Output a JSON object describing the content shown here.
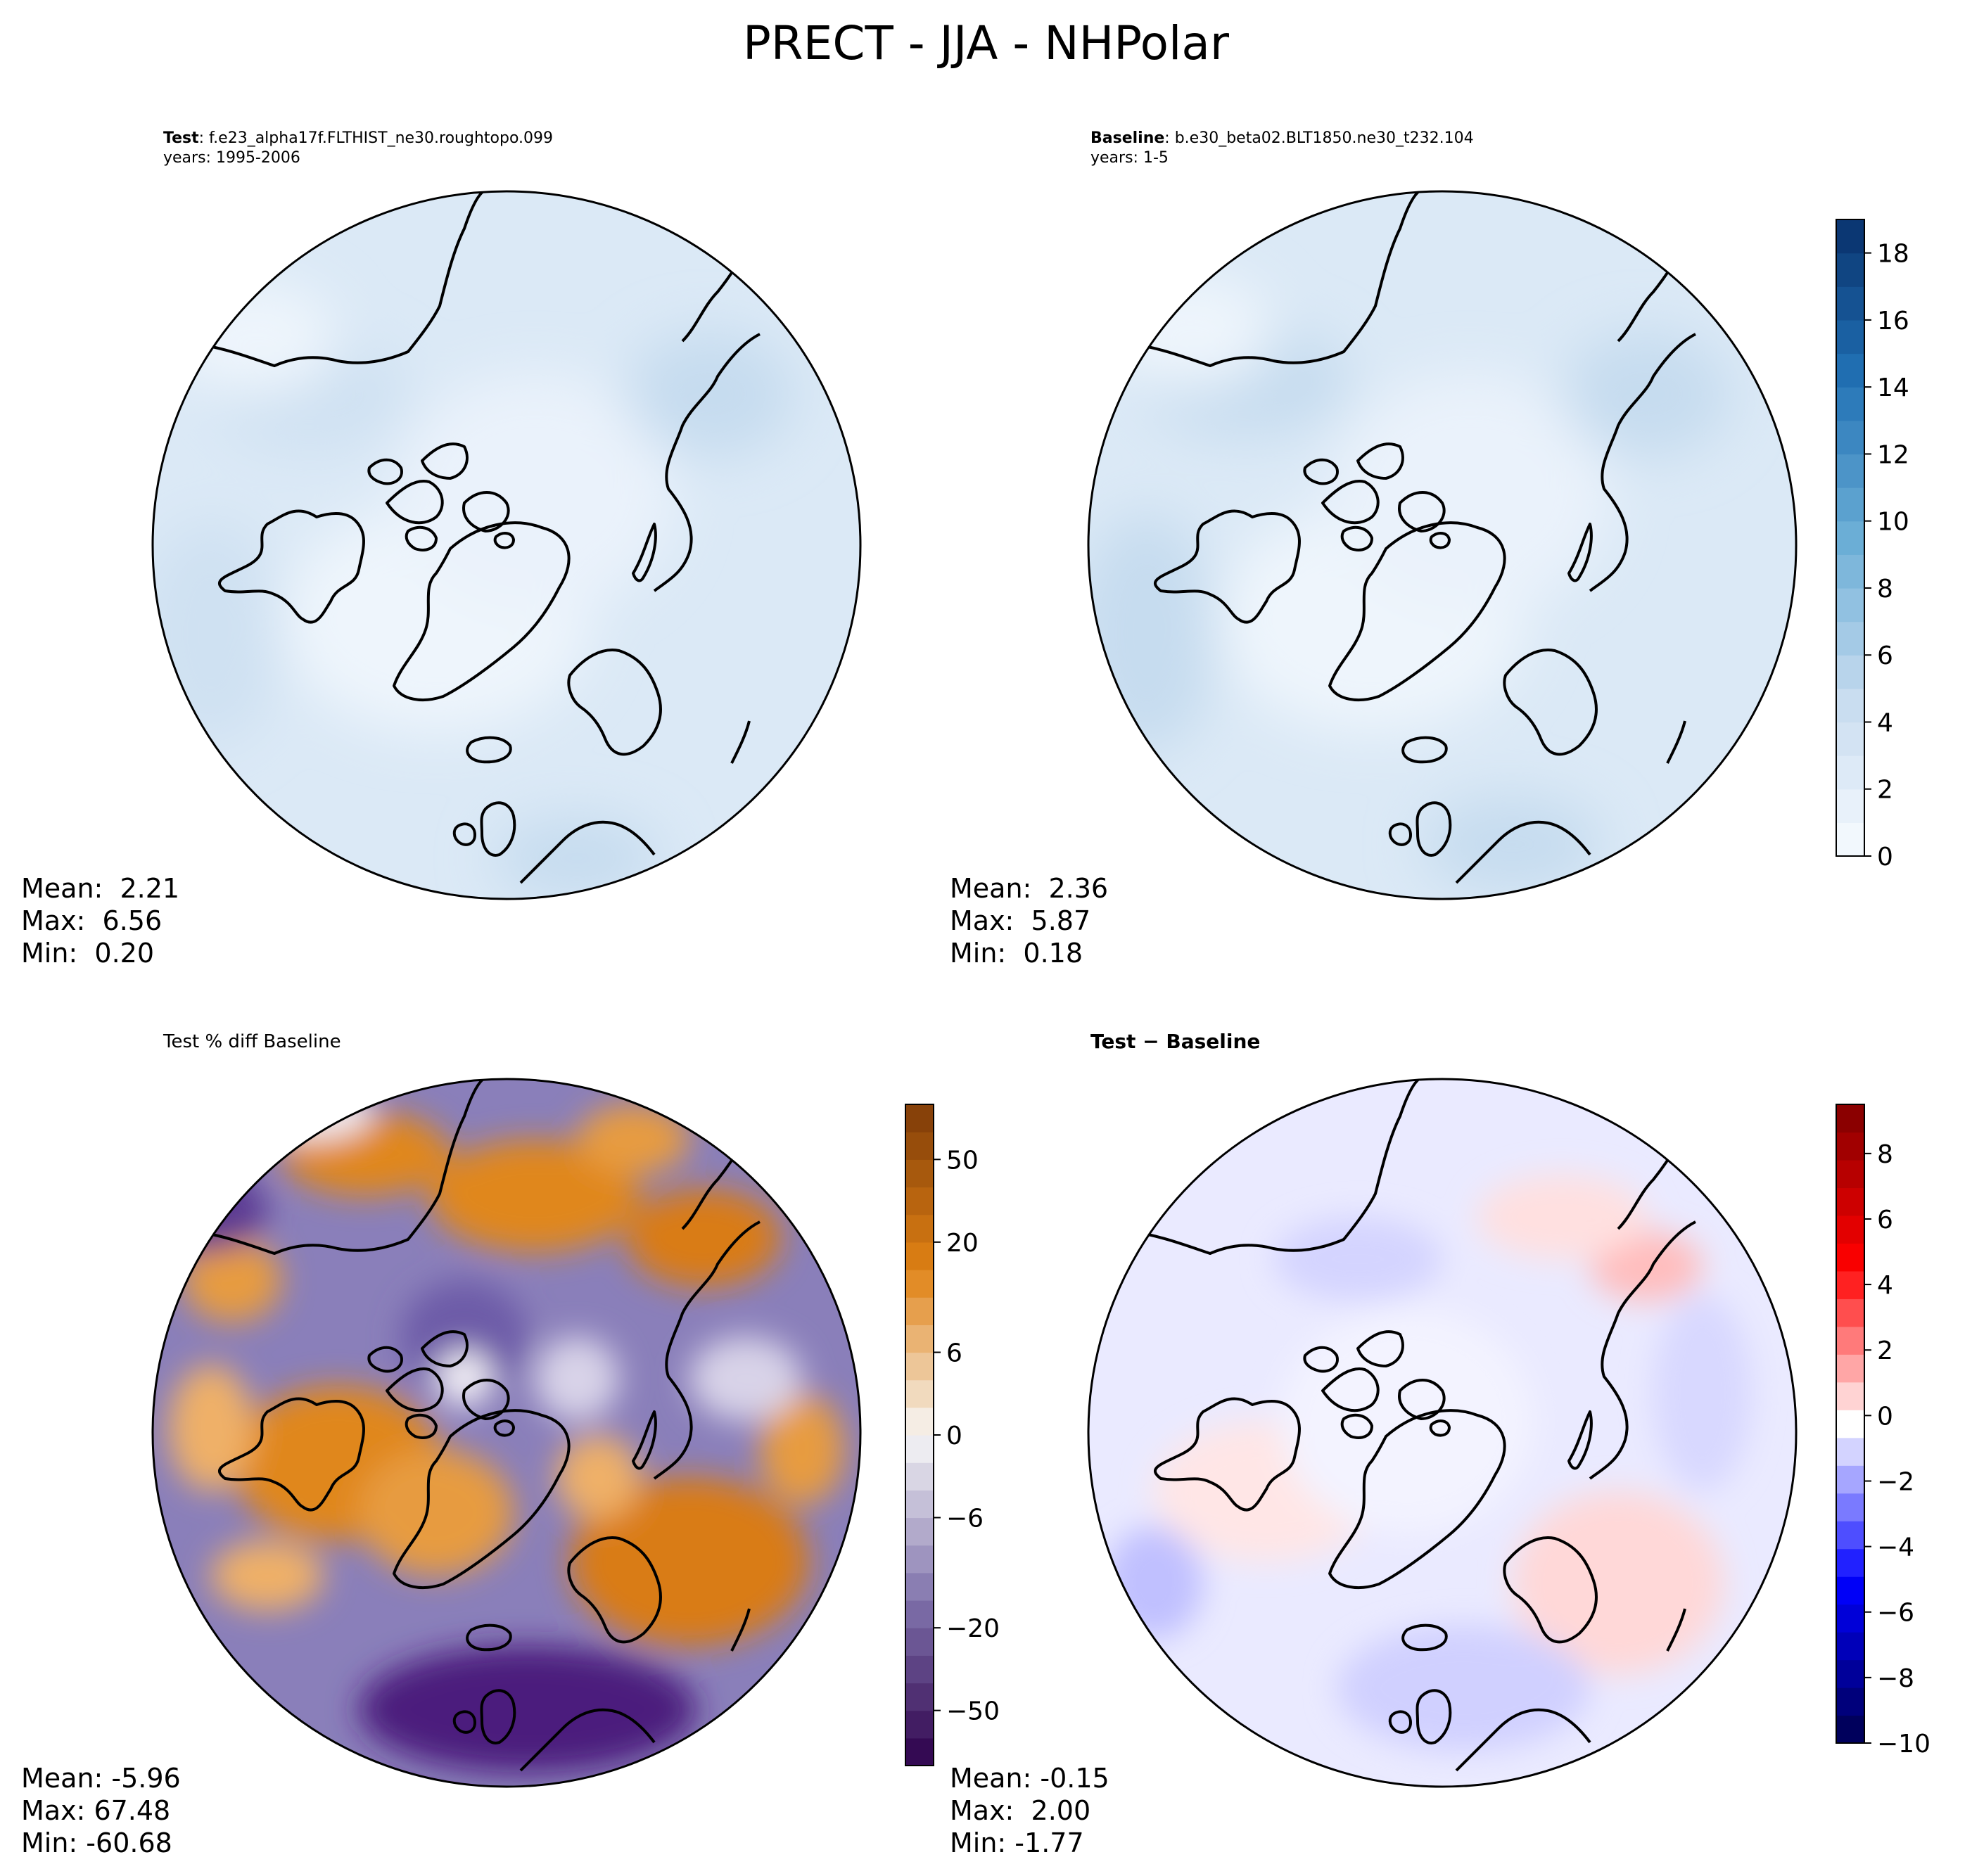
{
  "figure_title": "PRECT - JJA - NHPolar",
  "colors": {
    "coast": "#000000",
    "frame": "#000000"
  },
  "panels": [
    {
      "id": "test",
      "title_bold": "Test",
      "title_rest": ": f.e23_alpha17f.FLTHIST_ne30.roughtopo.099",
      "title_line2": "years: 1995-2006",
      "stats": {
        "mean_label": "Mean:  2.21",
        "max_label": "Max:  6.56",
        "min_label": "Min:  0.20"
      }
    },
    {
      "id": "baseline",
      "title_bold": "Baseline",
      "title_rest": ": b.e30_beta02.BLT1850.ne30_t232.104",
      "title_line2": "years: 1-5",
      "stats": {
        "mean_label": "Mean:  2.36",
        "max_label": "Max:  5.87",
        "min_label": "Min:  0.18"
      }
    },
    {
      "id": "pctdiff",
      "title_plain": "Test % diff Baseline",
      "stats": {
        "mean_label": "Mean: -5.96",
        "max_label": "Max: 67.48",
        "min_label": "Min: -60.68"
      }
    },
    {
      "id": "diff",
      "title_boldbig": "Test − Baseline",
      "stats": {
        "mean_label": "Mean: -0.15",
        "max_label": "Max:  2.00",
        "min_label": "Min: -1.77"
      }
    }
  ],
  "chart_data": [
    {
      "type": "heatmap",
      "title": "Test: f.e23_alpha17f.FLTHIST_ne30.roughtopo.099 (years: 1995-2006)",
      "projection": "north polar stereographic",
      "stats": {
        "mean": 2.21,
        "max": 6.56,
        "min": 0.2
      },
      "colorbar_shared_with": "baseline"
    },
    {
      "type": "heatmap",
      "title": "Baseline: b.e30_beta02.BLT1850.ne30_t232.104 (years: 1-5)",
      "projection": "north polar stereographic",
      "stats": {
        "mean": 2.36,
        "max": 5.87,
        "min": 0.18
      },
      "colorbar": {
        "colormap": "Blues",
        "range": [
          0,
          19
        ],
        "levels": [
          0,
          1,
          2,
          3,
          4,
          5,
          6,
          7,
          8,
          9,
          10,
          11,
          12,
          13,
          14,
          15,
          16,
          17,
          18,
          19
        ],
        "ticks": [
          "0",
          "2",
          "4",
          "6",
          "8",
          "10",
          "12",
          "14",
          "16",
          "18"
        ]
      }
    },
    {
      "type": "heatmap",
      "title": "Test % diff Baseline",
      "projection": "north polar stereographic",
      "stats": {
        "mean": -5.96,
        "max": 67.48,
        "min": -60.68
      },
      "colorbar": {
        "colormap": "PuOr_r",
        "levels": [
          -70,
          -60,
          -50,
          -40,
          -30,
          -20,
          -15,
          -10,
          -8,
          -6,
          -4,
          -2,
          0,
          2,
          4,
          6,
          8,
          10,
          15,
          20,
          30,
          40,
          50,
          60,
          70
        ],
        "ticks": [
          "−50",
          "−20",
          "−6",
          "0",
          "6",
          "20",
          "50"
        ],
        "tick_values": [
          -50,
          -20,
          -6,
          0,
          6,
          20,
          50
        ]
      }
    },
    {
      "type": "heatmap",
      "title": "Test − Baseline",
      "projection": "north polar stereographic",
      "stats": {
        "mean": -0.15,
        "max": 2.0,
        "min": -1.77
      },
      "colorbar": {
        "colormap": "seismic",
        "range": [
          -10,
          9.5
        ],
        "levels": [
          -10,
          -9,
          -8,
          -7,
          -6,
          -5,
          -4,
          -3,
          -2,
          -1.5,
          -1,
          -0.5,
          0,
          0.5,
          1,
          1.5,
          2,
          3,
          4,
          5,
          6,
          7,
          8,
          9
        ],
        "ticks": [
          "−10",
          "−8",
          "−6",
          "−4",
          "−2",
          "0",
          "2",
          "4",
          "6",
          "8"
        ],
        "tick_values": [
          -10,
          -8,
          -6,
          -4,
          -2,
          0,
          2,
          4,
          6,
          8
        ]
      }
    }
  ]
}
